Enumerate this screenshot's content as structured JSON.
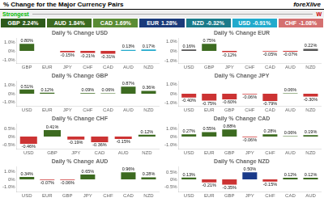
{
  "chart_data": [
    {
      "type": "tiles",
      "title": "% Change for the Major Currency Pairs",
      "annotations": [
        {
          "text": "foreXlive"
        },
        {
          "text": "Strongest",
          "color": "#00bb00"
        },
        {
          "text": "W",
          "color": "#cc0000"
        }
      ],
      "categories": [
        "GBP",
        "AUD",
        "CAD",
        "EUR",
        "NZD",
        "USD",
        "CHF"
      ],
      "values": [
        2.24,
        1.84,
        1.69,
        1.28,
        -0.32,
        -0.91,
        -1.08
      ],
      "value_labels": [
        "2.24%",
        "1.84%",
        "1.69%",
        "1.28%",
        "-0.32%",
        "-0.91%",
        "-1.08%"
      ],
      "colors": [
        "#2d5a1b",
        "#3d6b21",
        "#5a8c35",
        "#1a3a7a",
        "#1a7a8a",
        "#22aacc",
        "#d47070"
      ]
    },
    {
      "type": "bar",
      "title": "Daily % Change USD",
      "categories": [
        "GBP",
        "EUR",
        "JPY",
        "CHF",
        "CAD",
        "AUD",
        "NZD"
      ],
      "values": [
        0.8,
        0.0,
        -0.15,
        -0.21,
        -0.31,
        0.13,
        0.17
      ],
      "value_labels": [
        "0.80%",
        null,
        "-0.15%",
        "-0.21%",
        "-0.31%",
        "0.13%",
        "0.17%"
      ],
      "colors": [
        "#3d6b21",
        "#3d6b21",
        "#cc3333",
        "#cc3333",
        "#cc3333",
        "#22aacc",
        "#22aacc"
      ],
      "ylim": [
        -1.4,
        1.4
      ],
      "yticks": [
        {
          "value": -1,
          "label": "-1.0%"
        },
        {
          "value": 0,
          "label": "0%"
        },
        {
          "value": 1,
          "label": "1.0%"
        }
      ],
      "data_labels": true,
      "grid": false
    },
    {
      "type": "bar",
      "title": "Daily % Change EUR",
      "categories": [
        "USD",
        "GBP",
        "JPY",
        "CHF",
        "CAD",
        "AUD",
        "NZD"
      ],
      "values": [
        0.16,
        0.75,
        -0.12,
        0.0,
        -0.05,
        -0.07,
        0.22
      ],
      "value_labels": [
        "0.16%",
        "0.75%",
        "-0.12%",
        null,
        "-0.05%",
        "-0.07%",
        "0.22%"
      ],
      "colors": [
        "#555555",
        "#3d6b21",
        "#cc3333",
        "#555555",
        "#cc3333",
        "#cc3333",
        "#555555"
      ],
      "ylim": [
        -1.3125,
        1.3125
      ],
      "yticks": [
        {
          "value": -1,
          "label": "-1.0%"
        },
        {
          "value": 0,
          "label": "0%"
        },
        {
          "value": 1,
          "label": "1.0%"
        }
      ],
      "data_labels": true,
      "grid": false
    },
    {
      "type": "bar",
      "title": "Daily % Change GBP",
      "categories": [
        "USD",
        "EUR",
        "JPY",
        "CHF",
        "CAD",
        "AUD",
        "NZD"
      ],
      "values": [
        0.51,
        0.12,
        0.0,
        0.09,
        0.06,
        0.87,
        0.36
      ],
      "value_labels": [
        "0.51%",
        "0.12%",
        null,
        "0.09%",
        "0.06%",
        "0.87%",
        "0.36%"
      ],
      "colors": [
        "#3d6b21",
        "#3d6b21",
        "#555555",
        "#3d6b21",
        "#3d6b21",
        "#3d6b21",
        "#3d6b21"
      ],
      "ylim": [
        -1.5225,
        1.5225
      ],
      "yticks": [
        {
          "value": -1,
          "label": "-1.0%"
        },
        {
          "value": 0,
          "label": "0%"
        },
        {
          "value": 1,
          "label": "1.0%"
        }
      ],
      "data_labels": true,
      "grid": false
    },
    {
      "type": "bar",
      "title": "Daily % Change JPY",
      "categories": [
        "USD",
        "EUR",
        "GBP",
        "CHF",
        "CAD",
        "AUD",
        "NZD"
      ],
      "values": [
        -0.4,
        -0.75,
        -0.6,
        -0.06,
        -0.79,
        0.06,
        -0.3
      ],
      "value_labels": [
        "-0.40%",
        "-0.75%",
        "-0.60%",
        "-0.06%",
        "-0.79%",
        "0.06%",
        "-0.30%"
      ],
      "colors": [
        "#cc3333",
        "#cc3333",
        "#cc3333",
        "#cc3333",
        "#cc3333",
        "#3d6b21",
        "#cc3333"
      ],
      "ylim": [
        -1.3825,
        1.3825
      ],
      "yticks": [
        {
          "value": -1,
          "label": "-1.0%"
        },
        {
          "value": 0,
          "label": "0%"
        },
        {
          "value": 1,
          "label": "1.0%"
        }
      ],
      "data_labels": true,
      "grid": false
    },
    {
      "type": "bar",
      "title": "Daily % Change CHF",
      "categories": [
        "USD",
        "GBP",
        "JPY",
        "CAD",
        "AUD",
        "NZD"
      ],
      "values": [
        -0.46,
        0.41,
        -0.19,
        -0.36,
        -0.15,
        0.12
      ],
      "value_labels": [
        "-0.46%",
        "0.41%",
        "-0.19%",
        "-0.36%",
        "-0.15%",
        "0.12%"
      ],
      "colors": [
        "#cc3333",
        "#3d6b21",
        "#cc3333",
        "#cc3333",
        "#cc3333",
        "#3d6b21"
      ],
      "ylim": [
        -0.805,
        0.805
      ],
      "yticks": [
        {
          "value": -0.5,
          "label": "-0.5%"
        },
        {
          "value": 0,
          "label": "0%"
        },
        {
          "value": 0.5,
          "label": "0.5%"
        }
      ],
      "data_labels": true,
      "grid": false
    },
    {
      "type": "bar",
      "title": "Daily % Change CAD",
      "categories": [
        "USD",
        "EUR",
        "GBP",
        "JPY",
        "CHF",
        "AUD",
        "NZD"
      ],
      "values": [
        0.27,
        0.55,
        0.88,
        -0.06,
        0.28,
        0.06,
        0.19
      ],
      "value_labels": [
        "0.27%",
        "0.55%",
        "0.88%",
        "-0.06%",
        "0.28%",
        "0.06%",
        "0.19%"
      ],
      "colors": [
        "#3d6b21",
        "#3d6b21",
        "#3d6b21",
        "#cc3333",
        "#3d6b21",
        "#3d6b21",
        "#3d6b21"
      ],
      "ylim": [
        -1.54,
        1.54
      ],
      "yticks": [
        {
          "value": -1,
          "label": "-1.0%"
        },
        {
          "value": 0,
          "label": "0%"
        },
        {
          "value": 1,
          "label": "1.0%"
        }
      ],
      "data_labels": true,
      "grid": false
    },
    {
      "type": "bar",
      "title": "Daily % Change AUD",
      "categories": [
        "USD",
        "EUR",
        "GBP",
        "JPY",
        "CHF",
        "CAD",
        "NZD"
      ],
      "values": [
        0.34,
        -0.07,
        -0.06,
        0.65,
        0.0,
        0.96,
        0.28
      ],
      "value_labels": [
        "0.34%",
        "-0.07%",
        "-0.06%",
        "0.65%",
        null,
        "0.96%",
        "0.28%"
      ],
      "colors": [
        "#3d6b21",
        "#cc3333",
        "#cc3333",
        "#3d6b21",
        "#555555",
        "#3d6b21",
        "#3d6b21"
      ],
      "ylim": [
        -1.68,
        1.68
      ],
      "yticks": [
        {
          "value": -1,
          "label": "-1.0%"
        },
        {
          "value": 0,
          "label": "0%"
        },
        {
          "value": 1,
          "label": "1.0%"
        }
      ],
      "data_labels": true,
      "grid": false
    },
    {
      "type": "bar",
      "title": "Daily % Change NZD",
      "categories": [
        "USD",
        "EUR",
        "GBP",
        "JPY",
        "CHF",
        "CAD",
        "AUD"
      ],
      "values": [
        0.13,
        -0.21,
        -0.35,
        0.5,
        -0.15,
        0.12,
        0.12
      ],
      "value_labels": [
        "0.13%",
        "-0.21%",
        "-0.35%",
        "0.50%",
        "-0.15%",
        "0.12%",
        "0.12%"
      ],
      "colors": [
        "#3d6b21",
        "#cc3333",
        "#cc3333",
        "#1a3a8a",
        "#cc3333",
        "#3d6b21",
        "#3d6b21"
      ],
      "ylim": [
        -0.875,
        0.875
      ],
      "yticks": [
        {
          "value": -0.5,
          "label": "-0.5%"
        },
        {
          "value": 0,
          "label": "0%"
        },
        {
          "value": 0.5,
          "label": "0.5%"
        }
      ],
      "data_labels": true,
      "grid": false
    }
  ]
}
